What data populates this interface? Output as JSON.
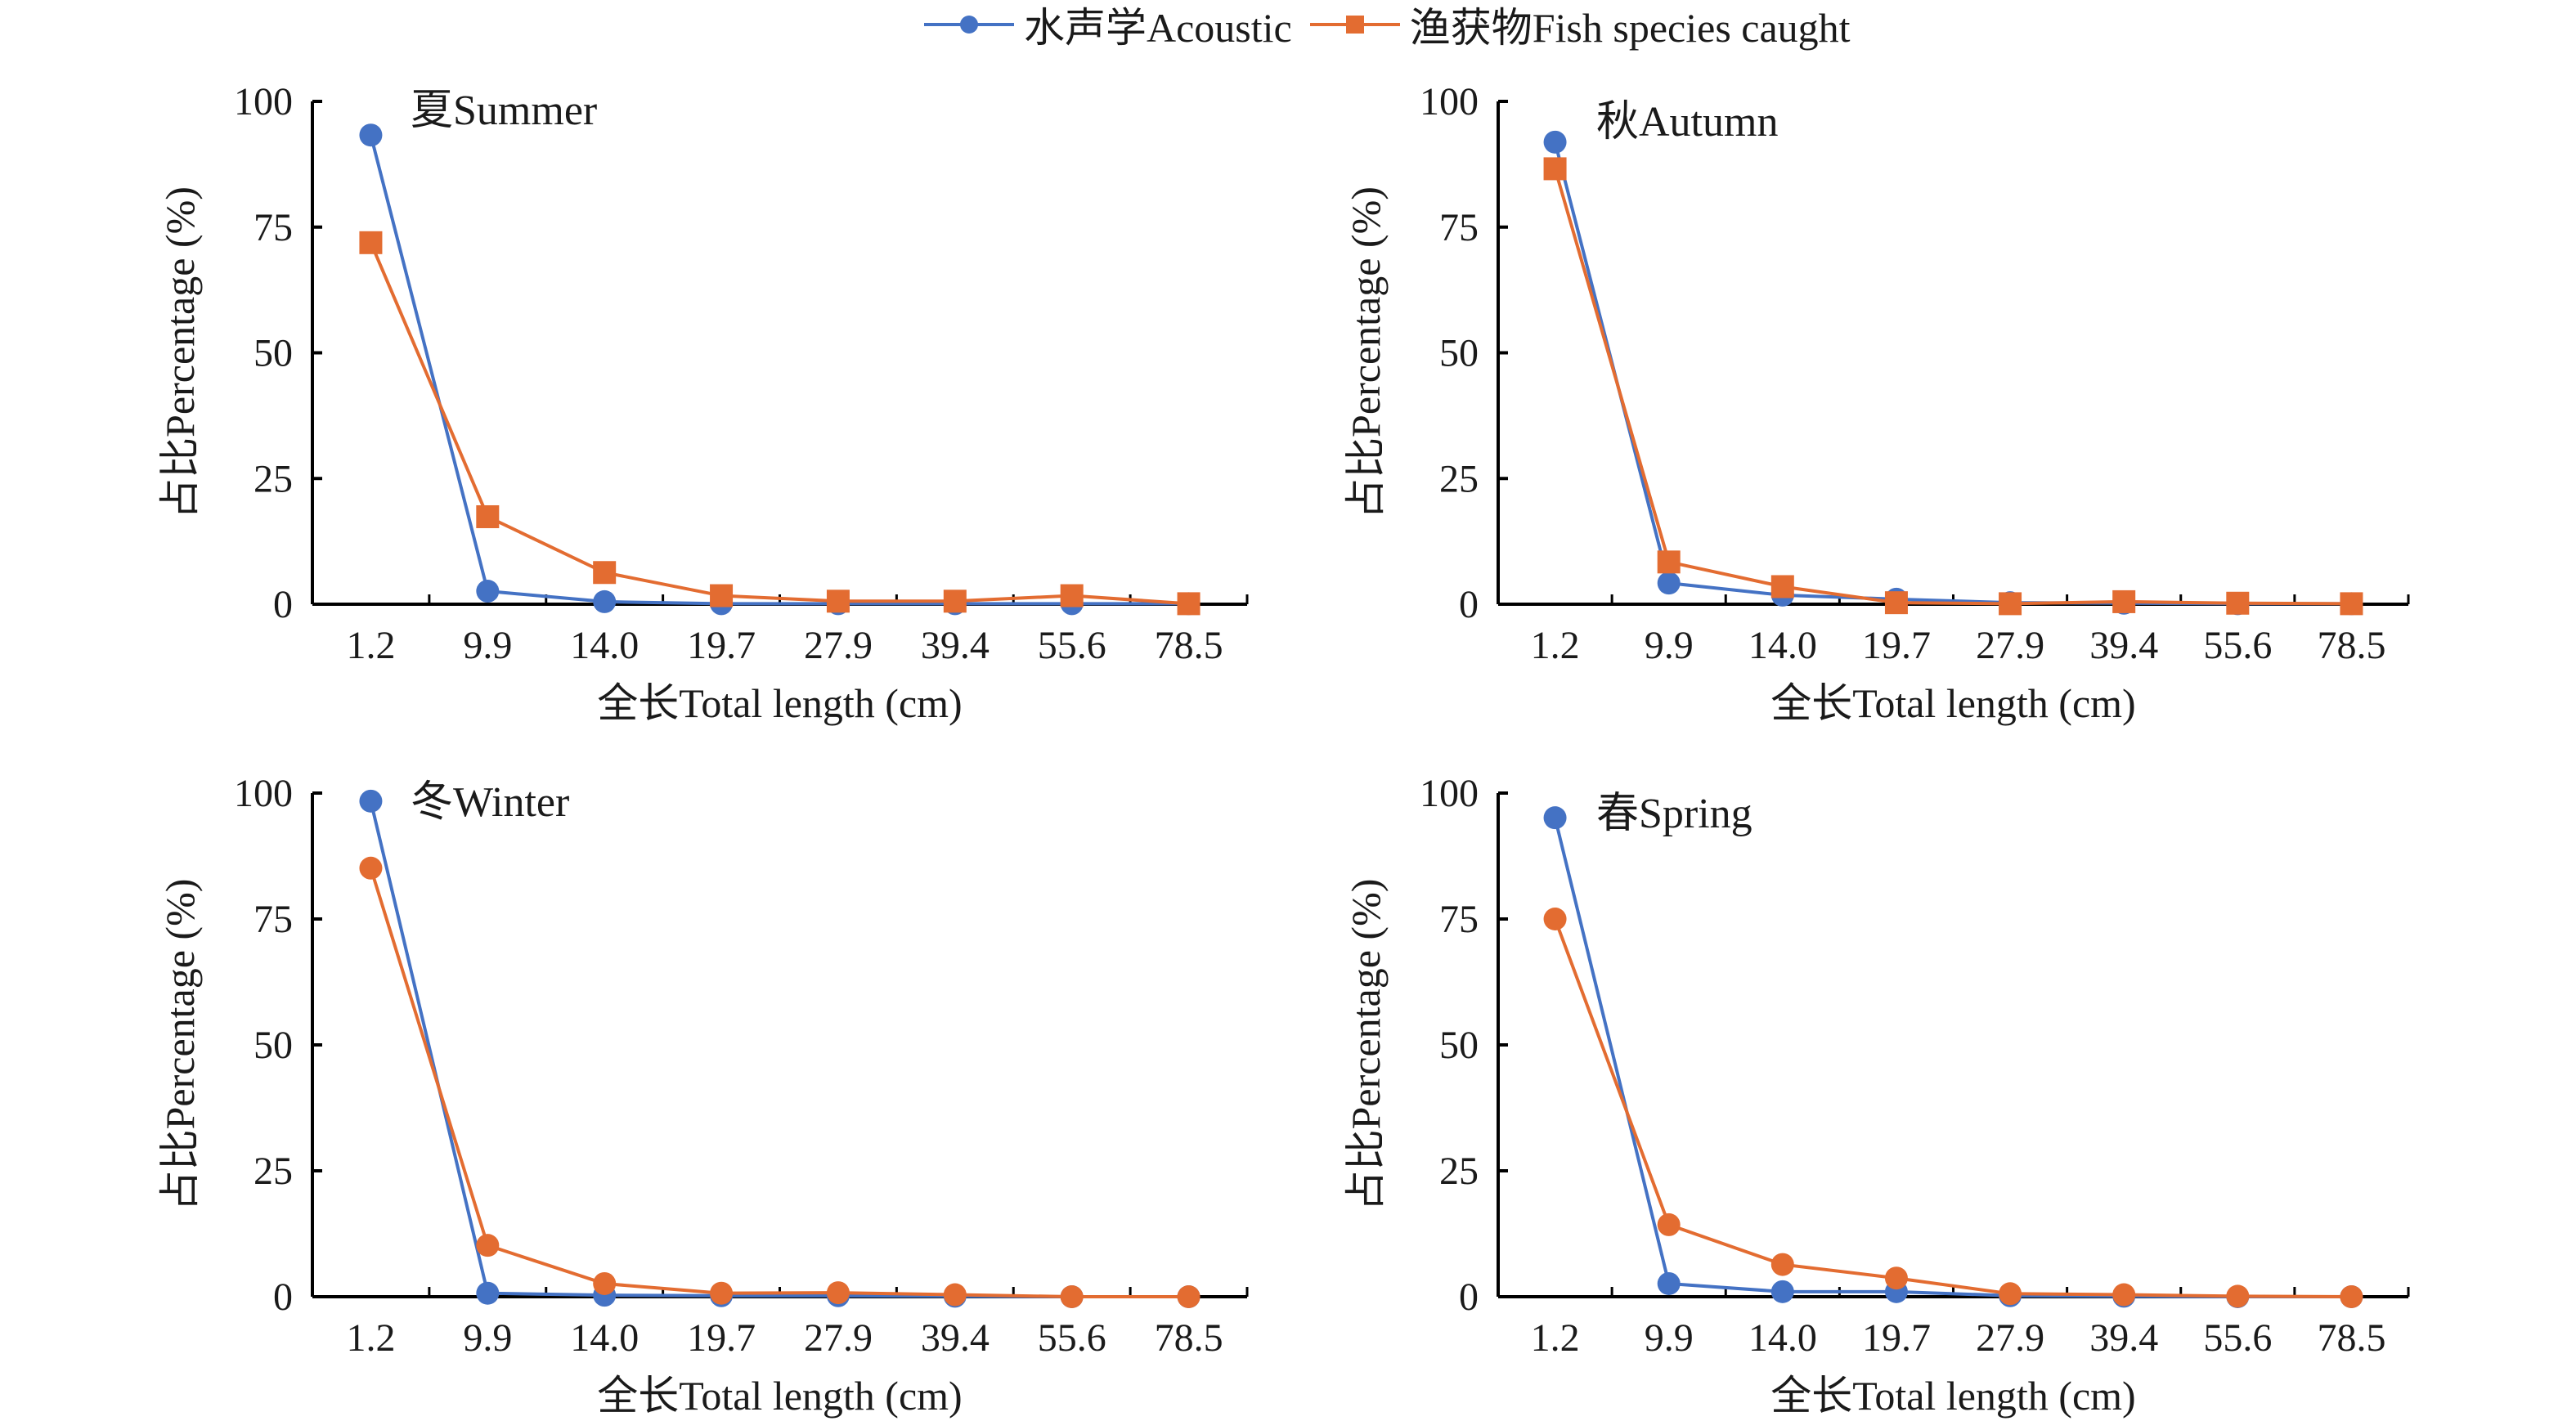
{
  "legend": {
    "acoustic": "水声学Acoustic",
    "catch": "渔获物Fish species caught"
  },
  "colors": {
    "acoustic": "#4472C4",
    "catch": "#E36C31",
    "axis": "#000000",
    "text": "#1a1a1a"
  },
  "chart_data": [
    {
      "type": "line",
      "title": "夏Summer",
      "xlabel": "全长Total length (cm)",
      "ylabel": "占比Percentage (%)",
      "categories": [
        "1.2",
        "9.9",
        "14.0",
        "19.7",
        "27.9",
        "39.4",
        "55.6",
        "78.5"
      ],
      "ylim": [
        0,
        100
      ],
      "yticks": [
        "0",
        "25",
        "50",
        "75",
        "100"
      ],
      "grid": false,
      "series": [
        {
          "name": "水声学Acoustic",
          "marker": "circle",
          "values": [
            93.3,
            2.6,
            0.5,
            0.1,
            0.1,
            0.1,
            0.1,
            0.1
          ]
        },
        {
          "name": "渔获物Fish species caught",
          "marker": "square",
          "values": [
            71.9,
            17.4,
            6.3,
            1.7,
            0.6,
            0.6,
            1.7,
            0.1
          ]
        }
      ]
    },
    {
      "type": "line",
      "title": "秋Autumn",
      "xlabel": "全长Total length (cm)",
      "ylabel": "占比Percentage (%)",
      "categories": [
        "1.2",
        "9.9",
        "14.0",
        "19.7",
        "27.9",
        "39.4",
        "55.6",
        "78.5"
      ],
      "ylim": [
        0,
        100
      ],
      "yticks": [
        "0",
        "25",
        "50",
        "75",
        "100"
      ],
      "grid": false,
      "series": [
        {
          "name": "水声学Acoustic",
          "marker": "circle",
          "values": [
            91.9,
            4.2,
            1.8,
            1.0,
            0.3,
            0.2,
            0.1,
            0.1
          ]
        },
        {
          "name": "渔获物Fish species caught",
          "marker": "square",
          "values": [
            86.6,
            8.4,
            3.5,
            0.3,
            0.1,
            0.5,
            0.2,
            0.1
          ]
        }
      ]
    },
    {
      "type": "line",
      "title": "冬Winter",
      "xlabel": "全长Total length (cm)",
      "ylabel": "占比Percentage (%)",
      "categories": [
        "1.2",
        "9.9",
        "14.0",
        "19.7",
        "27.9",
        "39.4",
        "55.6",
        "78.5"
      ],
      "ylim": [
        0,
        100
      ],
      "yticks": [
        "0",
        "25",
        "50",
        "75",
        "100"
      ],
      "grid": false,
      "series": [
        {
          "name": "水声学Acoustic",
          "marker": "circle",
          "values": [
            98.4,
            0.7,
            0.3,
            0.2,
            0.2,
            0.1,
            0.0,
            0.0
          ]
        },
        {
          "name": "渔获物Fish species caught",
          "marker": "circle",
          "values": [
            85.1,
            10.2,
            2.6,
            0.7,
            0.8,
            0.4,
            0.0,
            0.0
          ]
        }
      ]
    },
    {
      "type": "line",
      "title": "春Spring",
      "xlabel": "全长Total length (cm)",
      "ylabel": "占比Percentage (%)",
      "categories": [
        "1.2",
        "9.9",
        "14.0",
        "19.7",
        "27.9",
        "39.4",
        "55.6",
        "78.5"
      ],
      "ylim": [
        0,
        100
      ],
      "yticks": [
        "0",
        "25",
        "50",
        "75",
        "100"
      ],
      "grid": false,
      "series": [
        {
          "name": "水声学Acoustic",
          "marker": "circle",
          "values": [
            95.1,
            2.6,
            1.0,
            1.0,
            0.2,
            0.1,
            0.0,
            0.0
          ]
        },
        {
          "name": "渔获物Fish species caught",
          "marker": "circle",
          "values": [
            75.0,
            14.3,
            6.4,
            3.7,
            0.6,
            0.4,
            0.1,
            0.0
          ]
        }
      ]
    }
  ]
}
